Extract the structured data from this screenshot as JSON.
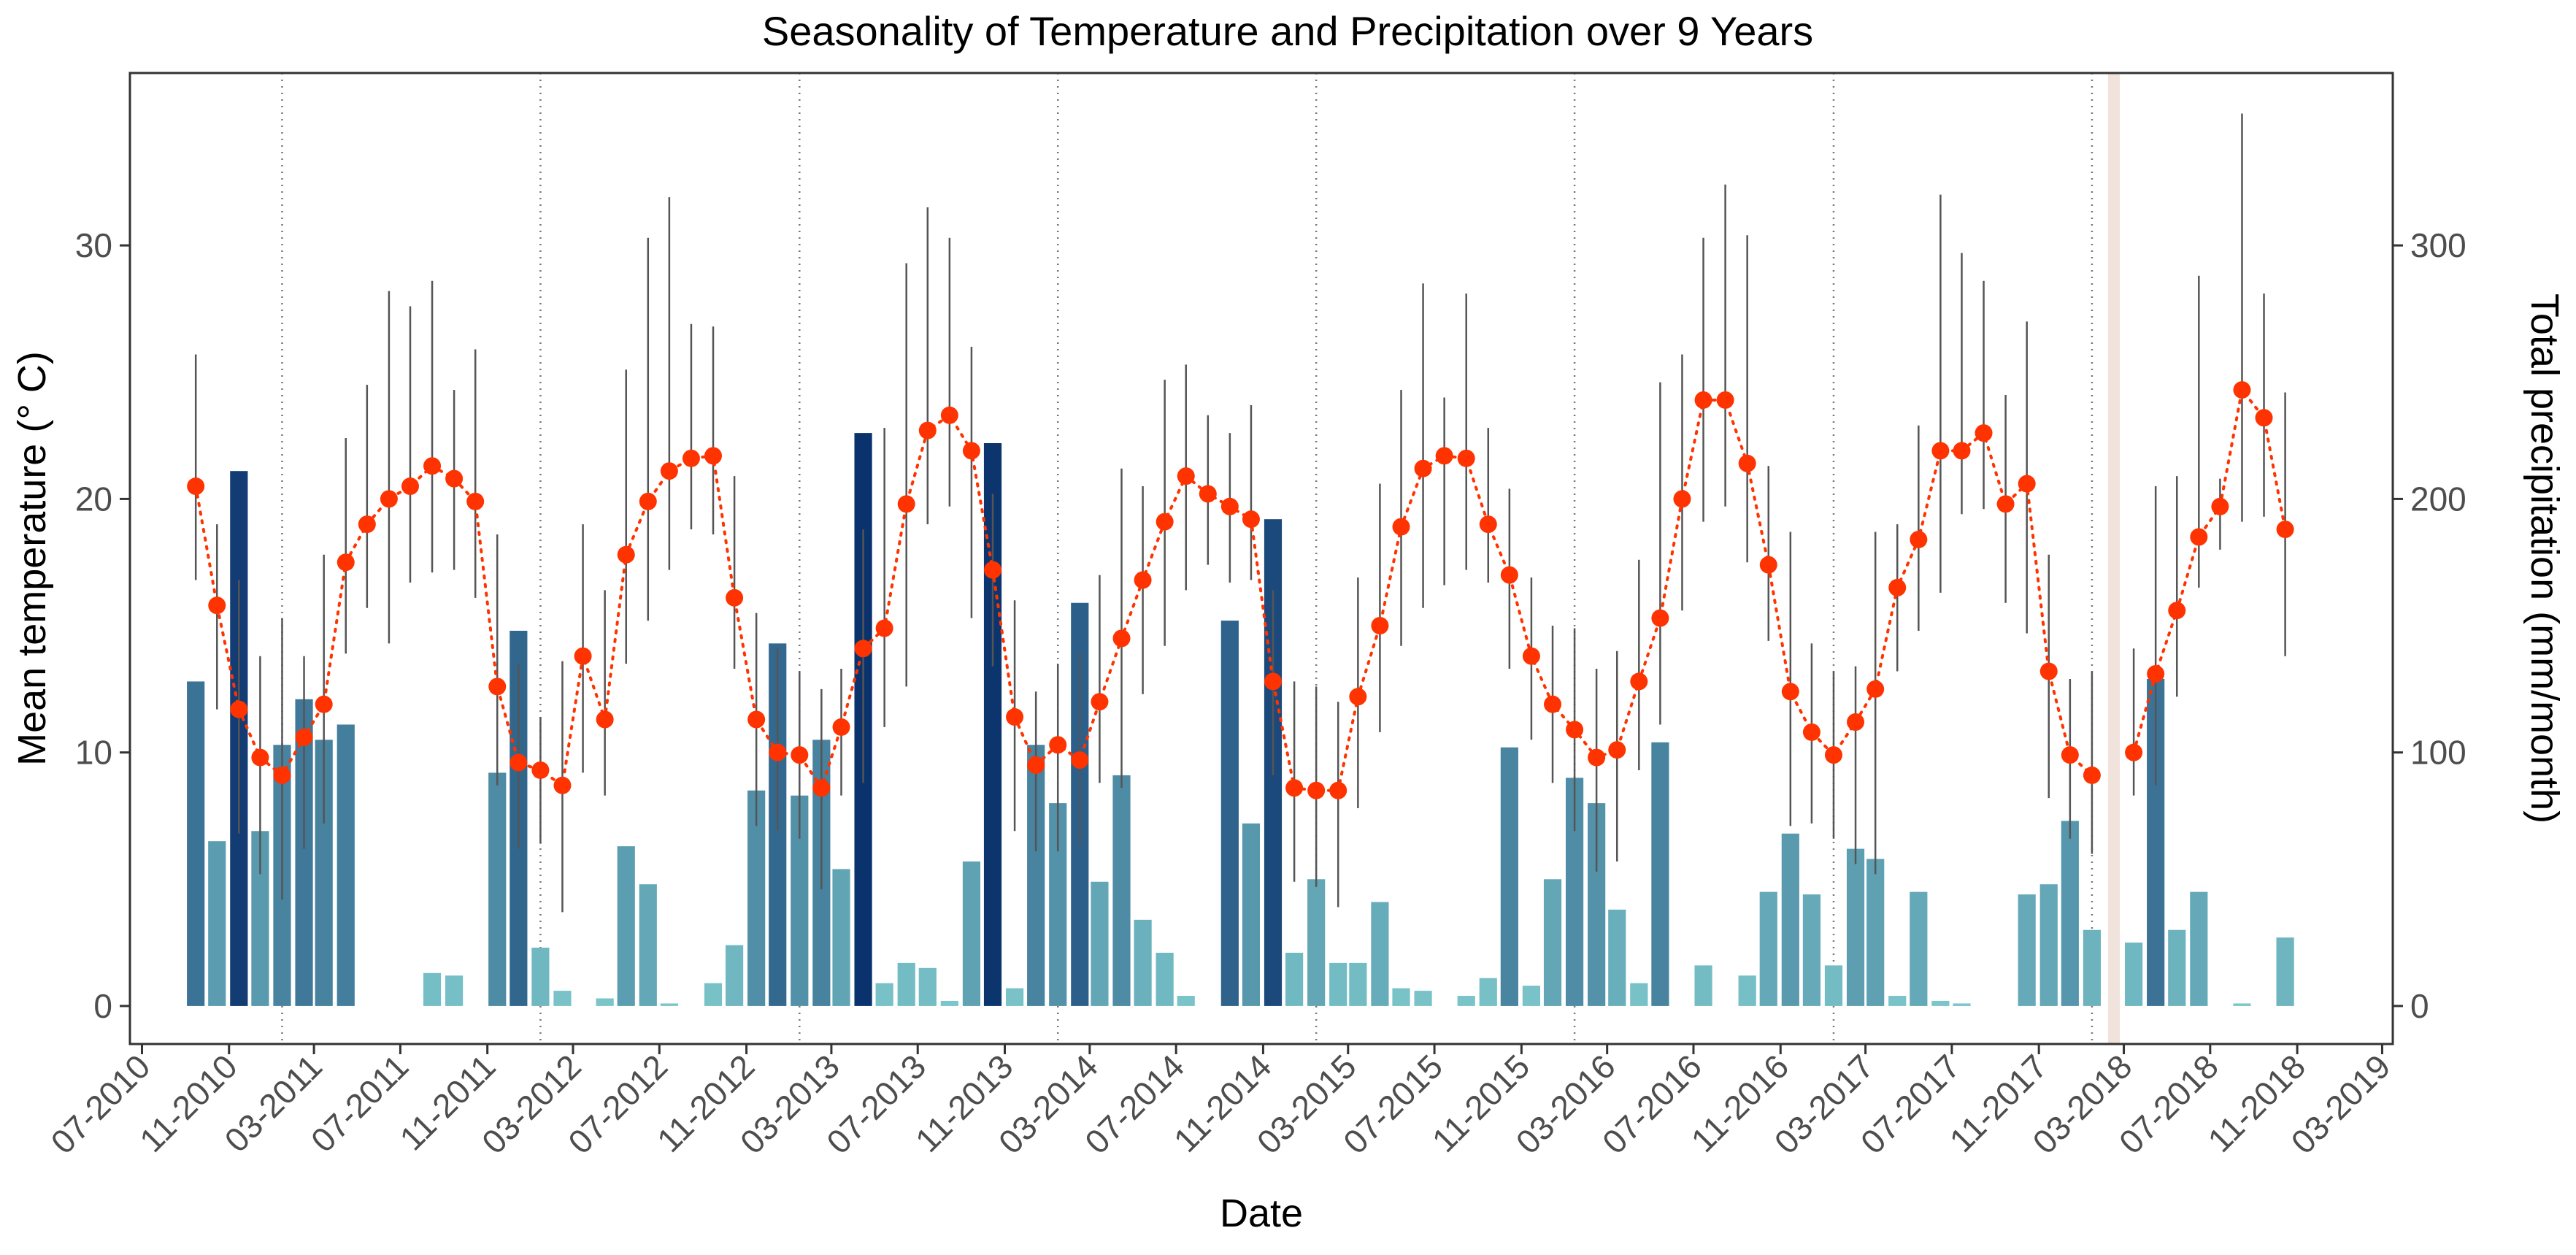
{
  "chart_data": {
    "type": "combo-bar-line",
    "title": "Seasonality of Temperature and Precipitation over 9 Years",
    "xlabel": "Date",
    "ylabel_left": "Mean temperature (° C)",
    "ylabel_right": "Total precipitation (mm/month)",
    "x_range": [
      "2010-06-14",
      "2019-03-16"
    ],
    "y_left_range": [
      -1.5,
      36.8
    ],
    "y_right_range": [
      -15,
      368
    ],
    "x_ticks": [
      "07-2010",
      "11-2010",
      "03-2011",
      "07-2011",
      "11-2011",
      "03-2012",
      "07-2012",
      "11-2012",
      "03-2013",
      "07-2013",
      "11-2013",
      "03-2014",
      "07-2014",
      "11-2014",
      "03-2015",
      "07-2015",
      "11-2015",
      "03-2016",
      "07-2016",
      "11-2016",
      "03-2017",
      "07-2017",
      "11-2017",
      "03-2018",
      "07-2018",
      "11-2018",
      "03-2019"
    ],
    "y_left_ticks": [
      0,
      10,
      20,
      30
    ],
    "y_right_ticks": [
      0,
      100,
      200,
      300
    ],
    "year_separators": [
      "2011-01-15",
      "2012-01-15",
      "2013-01-15",
      "2014-01-15",
      "2015-01-15",
      "2016-01-15",
      "2017-01-15",
      "2018-01-15"
    ],
    "highlight_month": "2018-02",
    "colors": {
      "temperature": "#ff3300",
      "error_bar": "#555555",
      "precip_dark": "#08306b",
      "precip_mid": "#2b6a90",
      "precip_light": "#74c2c6",
      "highlight": "#efe3dc"
    },
    "months": [
      "2010-09",
      "2010-10",
      "2010-11",
      "2010-12",
      "2011-01",
      "2011-02",
      "2011-03",
      "2011-04",
      "2011-05",
      "2011-06",
      "2011-07",
      "2011-08",
      "2011-09",
      "2011-10",
      "2011-11",
      "2011-12",
      "2012-01",
      "2012-02",
      "2012-03",
      "2012-04",
      "2012-05",
      "2012-06",
      "2012-07",
      "2012-08",
      "2012-09",
      "2012-10",
      "2012-11",
      "2012-12",
      "2013-01",
      "2013-02",
      "2013-03",
      "2013-04",
      "2013-05",
      "2013-06",
      "2013-07",
      "2013-08",
      "2013-09",
      "2013-10",
      "2013-11",
      "2013-12",
      "2014-01",
      "2014-02",
      "2014-03",
      "2014-04",
      "2014-05",
      "2014-06",
      "2014-07",
      "2014-08",
      "2014-09",
      "2014-10",
      "2014-11",
      "2014-12",
      "2015-01",
      "2015-02",
      "2015-03",
      "2015-04",
      "2015-05",
      "2015-06",
      "2015-07",
      "2015-08",
      "2015-09",
      "2015-10",
      "2015-11",
      "2015-12",
      "2016-01",
      "2016-02",
      "2016-03",
      "2016-04",
      "2016-05",
      "2016-06",
      "2016-07",
      "2016-08",
      "2016-09",
      "2016-10",
      "2016-11",
      "2016-12",
      "2017-01",
      "2017-02",
      "2017-03",
      "2017-04",
      "2017-05",
      "2017-06",
      "2017-07",
      "2017-08",
      "2017-09",
      "2017-10",
      "2017-11",
      "2017-12",
      "2018-01",
      "2018-02",
      "2018-03",
      "2018-04",
      "2018-05",
      "2018-06",
      "2018-07",
      "2018-08",
      "2018-09",
      "2018-10"
    ],
    "temperature_mean": [
      20.5,
      15.8,
      11.7,
      9.8,
      9.1,
      10.6,
      11.9,
      17.5,
      19.0,
      20.0,
      20.5,
      21.3,
      20.8,
      19.9,
      12.6,
      9.6,
      9.3,
      8.7,
      13.8,
      11.3,
      17.8,
      19.9,
      21.1,
      21.6,
      21.7,
      16.1,
      11.3,
      10.0,
      9.9,
      8.6,
      11.0,
      14.1,
      14.9,
      19.8,
      22.7,
      23.3,
      21.9,
      17.2,
      11.4,
      9.5,
      10.3,
      9.7,
      12.0,
      14.5,
      16.8,
      19.1,
      20.9,
      20.2,
      19.7,
      19.2,
      12.8,
      8.6,
      8.5,
      8.5,
      12.2,
      15.0,
      18.9,
      21.2,
      21.7,
      21.6,
      19.0,
      17.0,
      13.8,
      11.9,
      10.9,
      9.8,
      10.1,
      12.8,
      15.3,
      20.0,
      23.9,
      23.9,
      21.4,
      17.4,
      12.4,
      10.8,
      9.9,
      11.2,
      12.5,
      16.5,
      18.4,
      21.9,
      21.9,
      22.6,
      19.8,
      20.6,
      13.2,
      9.9,
      9.1,
      null,
      10.0,
      13.1,
      15.6,
      18.5,
      19.7,
      24.3,
      23.2,
      18.8
    ],
    "temperature_low": [
      16.8,
      11.7,
      6.8,
      5.2,
      4.2,
      6.2,
      7.2,
      13.9,
      15.7,
      14.3,
      16.7,
      17.1,
      17.2,
      16.1,
      8.7,
      6.2,
      6.4,
      3.7,
      9.2,
      8.3,
      13.5,
      15.2,
      17.2,
      18.8,
      18.6,
      13.3,
      7.1,
      6.9,
      6.6,
      4.6,
      8.3,
      8.8,
      11.0,
      12.6,
      19.0,
      19.7,
      15.3,
      13.4,
      6.9,
      6.1,
      6.1,
      6.3,
      8.8,
      8.6,
      12.3,
      14.2,
      16.4,
      17.4,
      16.7,
      16.8,
      9.1,
      4.9,
      4.7,
      3.9,
      7.8,
      10.8,
      14.2,
      15.7,
      16.6,
      17.2,
      16.7,
      13.3,
      10.5,
      8.8,
      6.9,
      5.3,
      5.7,
      9.3,
      11.1,
      15.6,
      19.1,
      19.7,
      17.5,
      14.4,
      7.1,
      7.2,
      6.6,
      5.6,
      5.2,
      13.2,
      14.8,
      16.3,
      19.4,
      19.6,
      15.9,
      14.7,
      8.2,
      6.6,
      6.0,
      null,
      8.3,
      8.7,
      12.2,
      16.5,
      18.0,
      19.1,
      19.3,
      13.8
    ],
    "temperature_high": [
      25.7,
      19.0,
      16.8,
      13.8,
      15.3,
      13.8,
      17.8,
      22.4,
      24.5,
      28.2,
      27.6,
      28.6,
      24.3,
      25.9,
      18.6,
      13.5,
      11.4,
      13.6,
      19.0,
      16.4,
      25.1,
      30.3,
      31.9,
      26.9,
      26.8,
      20.9,
      15.5,
      14.1,
      13.2,
      12.5,
      13.3,
      18.8,
      22.8,
      29.3,
      31.5,
      30.3,
      26.0,
      20.2,
      16.0,
      12.4,
      13.5,
      14.0,
      17.0,
      21.2,
      20.5,
      24.7,
      25.3,
      23.3,
      22.6,
      23.7,
      16.4,
      12.8,
      12.6,
      12.0,
      16.9,
      20.6,
      24.3,
      28.5,
      24.0,
      28.1,
      22.8,
      20.4,
      16.9,
      15.0,
      14.9,
      13.3,
      14.0,
      17.6,
      24.6,
      25.7,
      30.3,
      32.4,
      30.4,
      21.3,
      18.7,
      14.3,
      13.2,
      13.4,
      18.7,
      19.0,
      22.9,
      32.0,
      29.7,
      28.6,
      24.1,
      27.0,
      17.8,
      12.9,
      13.2,
      null,
      14.1,
      20.5,
      20.9,
      28.8,
      20.8,
      35.2,
      28.1,
      24.2
    ],
    "precipitation": [
      128,
      65,
      211,
      69,
      103,
      121,
      105,
      111,
      0,
      0,
      0,
      13,
      12,
      0,
      92,
      148,
      23,
      6,
      0,
      3,
      63,
      48,
      1,
      0,
      9,
      24,
      85,
      143,
      83,
      105,
      54,
      226,
      9,
      17,
      15,
      2,
      57,
      222,
      7,
      103,
      80,
      159,
      49,
      91,
      34,
      21,
      4,
      0,
      152,
      72,
      192,
      21,
      50,
      17,
      17,
      41,
      7,
      6,
      0,
      4,
      11,
      102,
      8,
      50,
      90,
      80,
      38,
      9,
      104,
      0,
      16,
      0,
      12,
      45,
      68,
      44,
      16,
      62,
      58,
      4,
      45,
      2,
      1,
      0,
      0,
      44,
      48,
      73,
      30,
      0,
      25,
      129,
      30,
      45,
      0,
      1,
      0,
      27
    ]
  }
}
